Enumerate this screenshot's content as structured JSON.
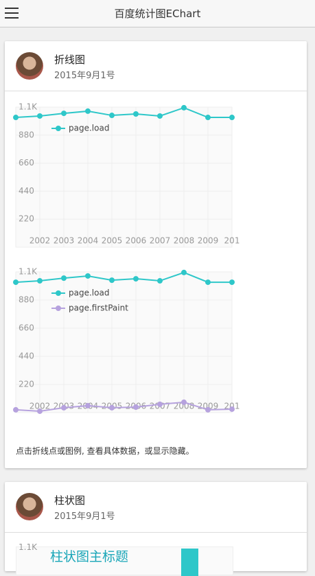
{
  "header": {
    "title": "百度统计图EChart"
  },
  "cards": [
    {
      "title": "折线图",
      "date": "2015年9月1号",
      "note": "点击折线点或图例, 查看具体数据，或显示隐藏。"
    },
    {
      "title": "柱状图",
      "date": "2015年9月1号",
      "chart_title": "柱状图主标题",
      "tick_label": "1.1K"
    }
  ],
  "chart_data": [
    {
      "type": "line",
      "categories": [
        null,
        "2002",
        "2003",
        "2004",
        "2005",
        "2006",
        "2007",
        "2008",
        "2009",
        "201"
      ],
      "series": [
        {
          "name": "page.load",
          "color": "#2ec7c9",
          "values": [
            1019,
            1030,
            1051,
            1068,
            1035,
            1046,
            1030,
            1095,
            1019,
            1019
          ]
        }
      ],
      "ylim": [
        0,
        1100
      ],
      "yticks": [
        220,
        440,
        660,
        880,
        {
          "value": 1100,
          "label": "1.1K"
        }
      ],
      "grid": true
    },
    {
      "type": "line",
      "categories": [
        null,
        "2002",
        "2003",
        "2004",
        "2005",
        "2006",
        "2007",
        "2008",
        "2009",
        "201"
      ],
      "series": [
        {
          "name": "page.load",
          "color": "#2ec7c9",
          "values": [
            1019,
            1030,
            1051,
            1068,
            1035,
            1046,
            1030,
            1095,
            1019,
            1019
          ]
        },
        {
          "name": "page.firstPaint",
          "color": "#b6a2de",
          "values": [
            22,
            11,
            38,
            54,
            38,
            43,
            65,
            81,
            22,
            27
          ]
        }
      ],
      "ylim": [
        0,
        1100
      ],
      "yticks": [
        220,
        440,
        660,
        880,
        {
          "value": 1100,
          "label": "1.1K"
        }
      ],
      "grid": true
    }
  ]
}
